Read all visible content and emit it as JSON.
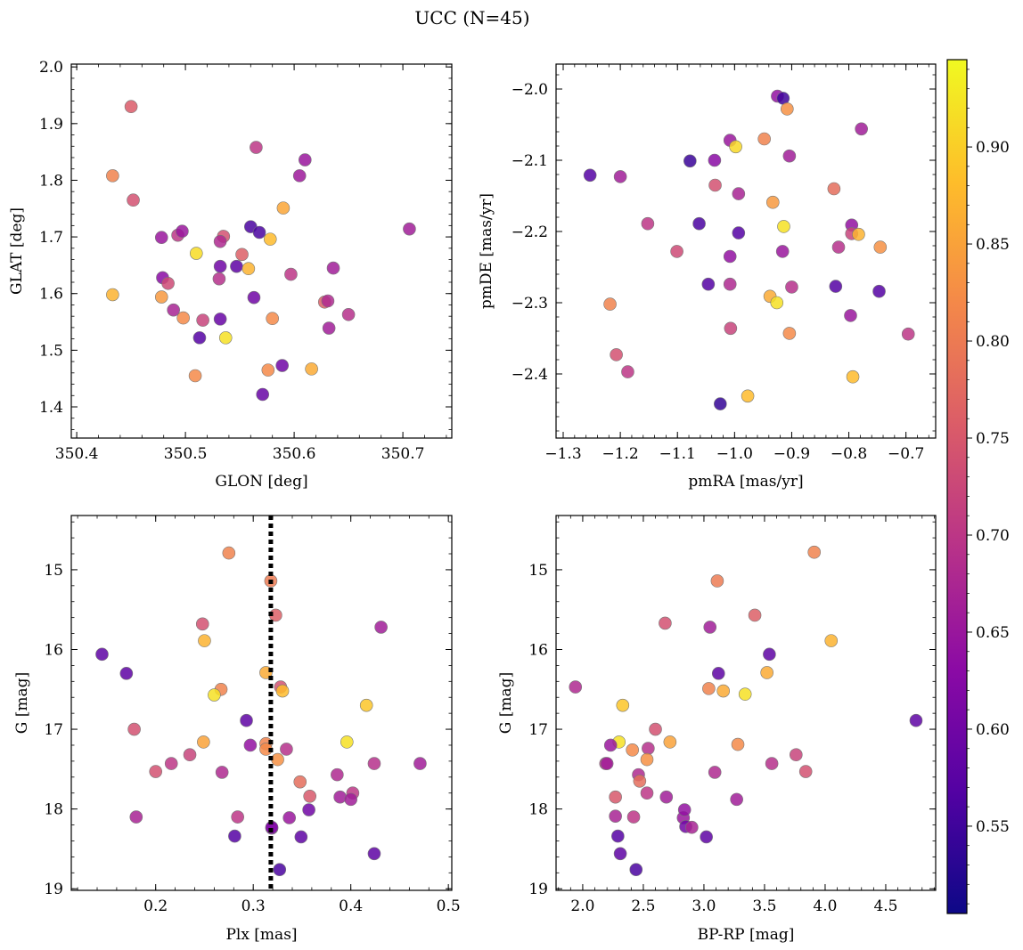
{
  "figure": {
    "title": "UCC (N=45)"
  },
  "colorbar": {
    "range": [
      0.505,
      0.945
    ],
    "ticks": [
      "0.55",
      "0.60",
      "0.65",
      "0.70",
      "0.75",
      "0.80",
      "0.85",
      "0.90"
    ]
  },
  "colormap": {
    "name": "plasma",
    "stops": [
      "#0d0887",
      "#5302a3",
      "#8b0aa5",
      "#b83289",
      "#db5c68",
      "#f48849",
      "#febd2a",
      "#f0f921"
    ]
  },
  "chart_data": [
    {
      "type": "scatter",
      "title": "",
      "xlabel": "GLON [deg]",
      "ylabel": "GLAT [deg]",
      "xlim": [
        350.395,
        350.745
      ],
      "ylim": [
        1.345,
        2.005
      ],
      "yinvert": false,
      "xticks": [
        "350.4",
        "350.5",
        "350.6",
        "350.7"
      ],
      "yticks": [
        "1.4",
        "1.5",
        "1.6",
        "1.7",
        "1.8",
        "1.9",
        "2.0"
      ],
      "points": [
        {
          "x": 350.45,
          "y": 1.93,
          "c": 0.755
        },
        {
          "x": 350.433,
          "y": 1.808,
          "c": 0.81
        },
        {
          "x": 350.452,
          "y": 1.765,
          "c": 0.74
        },
        {
          "x": 350.565,
          "y": 1.858,
          "c": 0.7
        },
        {
          "x": 350.61,
          "y": 1.836,
          "c": 0.65
        },
        {
          "x": 350.605,
          "y": 1.808,
          "c": 0.655
        },
        {
          "x": 350.59,
          "y": 1.751,
          "c": 0.855
        },
        {
          "x": 350.706,
          "y": 1.714,
          "c": 0.66
        },
        {
          "x": 350.478,
          "y": 1.699,
          "c": 0.65
        },
        {
          "x": 350.493,
          "y": 1.703,
          "c": 0.7
        },
        {
          "x": 350.497,
          "y": 1.71,
          "c": 0.65
        },
        {
          "x": 350.535,
          "y": 1.701,
          "c": 0.74
        },
        {
          "x": 350.532,
          "y": 1.692,
          "c": 0.68
        },
        {
          "x": 350.51,
          "y": 1.671,
          "c": 0.915
        },
        {
          "x": 350.56,
          "y": 1.718,
          "c": 0.56
        },
        {
          "x": 350.568,
          "y": 1.708,
          "c": 0.56
        },
        {
          "x": 350.578,
          "y": 1.696,
          "c": 0.88
        },
        {
          "x": 350.552,
          "y": 1.669,
          "c": 0.76
        },
        {
          "x": 350.532,
          "y": 1.648,
          "c": 0.6
        },
        {
          "x": 350.547,
          "y": 1.648,
          "c": 0.58
        },
        {
          "x": 350.558,
          "y": 1.644,
          "c": 0.87
        },
        {
          "x": 350.636,
          "y": 1.645,
          "c": 0.66
        },
        {
          "x": 350.597,
          "y": 1.634,
          "c": 0.7
        },
        {
          "x": 350.479,
          "y": 1.628,
          "c": 0.63
        },
        {
          "x": 350.484,
          "y": 1.618,
          "c": 0.73
        },
        {
          "x": 350.531,
          "y": 1.626,
          "c": 0.69
        },
        {
          "x": 350.563,
          "y": 1.593,
          "c": 0.6
        },
        {
          "x": 350.433,
          "y": 1.598,
          "c": 0.87
        },
        {
          "x": 350.478,
          "y": 1.594,
          "c": 0.84
        },
        {
          "x": 350.628,
          "y": 1.585,
          "c": 0.76
        },
        {
          "x": 350.631,
          "y": 1.587,
          "c": 0.68
        },
        {
          "x": 350.489,
          "y": 1.571,
          "c": 0.67
        },
        {
          "x": 350.498,
          "y": 1.557,
          "c": 0.82
        },
        {
          "x": 350.516,
          "y": 1.553,
          "c": 0.72
        },
        {
          "x": 350.532,
          "y": 1.555,
          "c": 0.59
        },
        {
          "x": 350.58,
          "y": 1.556,
          "c": 0.82
        },
        {
          "x": 350.65,
          "y": 1.563,
          "c": 0.69
        },
        {
          "x": 350.632,
          "y": 1.539,
          "c": 0.66
        },
        {
          "x": 350.513,
          "y": 1.522,
          "c": 0.57
        },
        {
          "x": 350.537,
          "y": 1.522,
          "c": 0.92
        },
        {
          "x": 350.576,
          "y": 1.465,
          "c": 0.82
        },
        {
          "x": 350.616,
          "y": 1.467,
          "c": 0.86
        },
        {
          "x": 350.589,
          "y": 1.473,
          "c": 0.6
        },
        {
          "x": 350.509,
          "y": 1.455,
          "c": 0.82
        },
        {
          "x": 350.571,
          "y": 1.422,
          "c": 0.59
        }
      ]
    },
    {
      "type": "scatter",
      "title": "",
      "xlabel": "pmRA [mas/yr]",
      "ylabel": "pmDE [mas/yr]",
      "xlim": [
        -1.3125,
        -0.648
      ],
      "ylim": [
        -2.49,
        -1.965
      ],
      "yinvert": false,
      "xticks": [
        "−1.3",
        "−1.2",
        "−1.1",
        "−1.0",
        "−0.9",
        "−0.8",
        "−0.7"
      ],
      "yticks": [
        "−2.4",
        "−2.3",
        "−2.2",
        "−2.1",
        "−2.0"
      ],
      "points": [
        {
          "x": -0.925,
          "y": -2.01,
          "c": 0.64
        },
        {
          "x": -0.915,
          "y": -2.013,
          "c": 0.55
        },
        {
          "x": -0.908,
          "y": -2.028,
          "c": 0.83
        },
        {
          "x": -0.778,
          "y": -2.056,
          "c": 0.66
        },
        {
          "x": -1.008,
          "y": -2.072,
          "c": 0.65
        },
        {
          "x": -0.998,
          "y": -2.081,
          "c": 0.91
        },
        {
          "x": -0.948,
          "y": -2.07,
          "c": 0.81
        },
        {
          "x": -0.904,
          "y": -2.094,
          "c": 0.66
        },
        {
          "x": -1.078,
          "y": -2.101,
          "c": 0.545
        },
        {
          "x": -1.035,
          "y": -2.1,
          "c": 0.63
        },
        {
          "x": -1.253,
          "y": -2.121,
          "c": 0.57
        },
        {
          "x": -1.2,
          "y": -2.123,
          "c": 0.66
        },
        {
          "x": -1.034,
          "y": -2.135,
          "c": 0.74
        },
        {
          "x": -0.993,
          "y": -2.147,
          "c": 0.67
        },
        {
          "x": -0.933,
          "y": -2.159,
          "c": 0.84
        },
        {
          "x": -0.826,
          "y": -2.14,
          "c": 0.78
        },
        {
          "x": -1.152,
          "y": -2.189,
          "c": 0.7
        },
        {
          "x": -1.062,
          "y": -2.189,
          "c": 0.56
        },
        {
          "x": -0.914,
          "y": -2.193,
          "c": 0.92
        },
        {
          "x": -0.993,
          "y": -2.202,
          "c": 0.57
        },
        {
          "x": -0.795,
          "y": -2.191,
          "c": 0.64
        },
        {
          "x": -0.795,
          "y": -2.203,
          "c": 0.72
        },
        {
          "x": -0.783,
          "y": -2.204,
          "c": 0.87
        },
        {
          "x": -0.745,
          "y": -2.222,
          "c": 0.83
        },
        {
          "x": -0.818,
          "y": -2.222,
          "c": 0.69
        },
        {
          "x": -1.101,
          "y": -2.228,
          "c": 0.73
        },
        {
          "x": -1.008,
          "y": -2.235,
          "c": 0.64
        },
        {
          "x": -0.916,
          "y": -2.228,
          "c": 0.65
        },
        {
          "x": -1.046,
          "y": -2.274,
          "c": 0.57
        },
        {
          "x": -1.008,
          "y": -2.274,
          "c": 0.68
        },
        {
          "x": -0.9,
          "y": -2.278,
          "c": 0.69
        },
        {
          "x": -0.823,
          "y": -2.277,
          "c": 0.57
        },
        {
          "x": -0.747,
          "y": -2.284,
          "c": 0.57
        },
        {
          "x": -0.938,
          "y": -2.291,
          "c": 0.86
        },
        {
          "x": -0.926,
          "y": -2.3,
          "c": 0.92
        },
        {
          "x": -1.218,
          "y": -2.302,
          "c": 0.81
        },
        {
          "x": -0.797,
          "y": -2.318,
          "c": 0.65
        },
        {
          "x": -1.007,
          "y": -2.336,
          "c": 0.72
        },
        {
          "x": -0.904,
          "y": -2.343,
          "c": 0.82
        },
        {
          "x": -0.696,
          "y": -2.344,
          "c": 0.7
        },
        {
          "x": -1.207,
          "y": -2.373,
          "c": 0.74
        },
        {
          "x": -1.187,
          "y": -2.397,
          "c": 0.7
        },
        {
          "x": -0.793,
          "y": -2.404,
          "c": 0.88
        },
        {
          "x": -0.977,
          "y": -2.431,
          "c": 0.88
        },
        {
          "x": -1.025,
          "y": -2.442,
          "c": 0.54
        }
      ]
    },
    {
      "type": "scatter",
      "title": "",
      "xlabel": "Plx [mas]",
      "ylabel": "G [mag]",
      "xlim": [
        0.1135,
        0.5035
      ],
      "ylim": [
        14.32,
        19.02
      ],
      "yinvert": true,
      "vline": 0.318,
      "xticks": [
        "0.2",
        "0.3",
        "0.4",
        "0.5"
      ],
      "yticks": [
        "15",
        "16",
        "17",
        "18",
        "19"
      ],
      "points": [
        {
          "x": 0.275,
          "y": 14.79,
          "c": 0.81
        },
        {
          "x": 0.318,
          "y": 15.14,
          "c": 0.8
        },
        {
          "x": 0.323,
          "y": 15.57,
          "c": 0.76
        },
        {
          "x": 0.248,
          "y": 15.68,
          "c": 0.74
        },
        {
          "x": 0.431,
          "y": 15.72,
          "c": 0.66
        },
        {
          "x": 0.25,
          "y": 15.89,
          "c": 0.87
        },
        {
          "x": 0.145,
          "y": 16.06,
          "c": 0.58
        },
        {
          "x": 0.17,
          "y": 16.3,
          "c": 0.58
        },
        {
          "x": 0.313,
          "y": 16.29,
          "c": 0.86
        },
        {
          "x": 0.328,
          "y": 16.47,
          "c": 0.74
        },
        {
          "x": 0.33,
          "y": 16.52,
          "c": 0.88
        },
        {
          "x": 0.267,
          "y": 16.5,
          "c": 0.81
        },
        {
          "x": 0.26,
          "y": 16.57,
          "c": 0.92
        },
        {
          "x": 0.416,
          "y": 16.7,
          "c": 0.89
        },
        {
          "x": 0.293,
          "y": 16.89,
          "c": 0.58
        },
        {
          "x": 0.178,
          "y": 17.0,
          "c": 0.74
        },
        {
          "x": 0.249,
          "y": 17.16,
          "c": 0.85
        },
        {
          "x": 0.313,
          "y": 17.18,
          "c": 0.81
        },
        {
          "x": 0.297,
          "y": 17.2,
          "c": 0.64
        },
        {
          "x": 0.396,
          "y": 17.16,
          "c": 0.92
        },
        {
          "x": 0.313,
          "y": 17.25,
          "c": 0.82
        },
        {
          "x": 0.334,
          "y": 17.25,
          "c": 0.69
        },
        {
          "x": 0.235,
          "y": 17.32,
          "c": 0.72
        },
        {
          "x": 0.325,
          "y": 17.38,
          "c": 0.83
        },
        {
          "x": 0.216,
          "y": 17.43,
          "c": 0.7
        },
        {
          "x": 0.424,
          "y": 17.43,
          "c": 0.69
        },
        {
          "x": 0.471,
          "y": 17.43,
          "c": 0.66
        },
        {
          "x": 0.2,
          "y": 17.53,
          "c": 0.74
        },
        {
          "x": 0.268,
          "y": 17.54,
          "c": 0.68
        },
        {
          "x": 0.386,
          "y": 17.57,
          "c": 0.68
        },
        {
          "x": 0.348,
          "y": 17.66,
          "c": 0.78
        },
        {
          "x": 0.402,
          "y": 17.8,
          "c": 0.7
        },
        {
          "x": 0.358,
          "y": 17.84,
          "c": 0.75
        },
        {
          "x": 0.389,
          "y": 17.85,
          "c": 0.66
        },
        {
          "x": 0.4,
          "y": 17.88,
          "c": 0.66
        },
        {
          "x": 0.357,
          "y": 18.01,
          "c": 0.6
        },
        {
          "x": 0.18,
          "y": 18.1,
          "c": 0.67
        },
        {
          "x": 0.284,
          "y": 18.1,
          "c": 0.7
        },
        {
          "x": 0.337,
          "y": 18.11,
          "c": 0.65
        },
        {
          "x": 0.319,
          "y": 18.24,
          "c": 0.62
        },
        {
          "x": 0.281,
          "y": 18.34,
          "c": 0.57
        },
        {
          "x": 0.349,
          "y": 18.35,
          "c": 0.58
        },
        {
          "x": 0.424,
          "y": 18.56,
          "c": 0.58
        },
        {
          "x": 0.327,
          "y": 18.76,
          "c": 0.56
        },
        {
          "x": 0.319,
          "y": 18.23,
          "c": 0.62
        }
      ]
    },
    {
      "type": "scatter",
      "title": "",
      "xlabel": "BP-RP [mag]",
      "ylabel": "G [mag]",
      "xlim": [
        1.78,
        4.912
      ],
      "ylim": [
        14.32,
        19.02
      ],
      "yinvert": true,
      "xticks": [
        "2.0",
        "2.5",
        "3.0",
        "3.5",
        "4.0",
        "4.5"
      ],
      "yticks": [
        "15",
        "16",
        "17",
        "18",
        "19"
      ],
      "points": [
        {
          "x": 3.91,
          "y": 14.78,
          "c": 0.81
        },
        {
          "x": 3.11,
          "y": 15.14,
          "c": 0.8
        },
        {
          "x": 3.42,
          "y": 15.57,
          "c": 0.76
        },
        {
          "x": 2.68,
          "y": 15.67,
          "c": 0.74
        },
        {
          "x": 3.05,
          "y": 15.72,
          "c": 0.66
        },
        {
          "x": 4.05,
          "y": 15.89,
          "c": 0.87
        },
        {
          "x": 3.54,
          "y": 16.06,
          "c": 0.58
        },
        {
          "x": 3.12,
          "y": 16.3,
          "c": 0.58
        },
        {
          "x": 3.52,
          "y": 16.29,
          "c": 0.86
        },
        {
          "x": 1.94,
          "y": 16.47,
          "c": 0.68
        },
        {
          "x": 3.04,
          "y": 16.49,
          "c": 0.81
        },
        {
          "x": 3.16,
          "y": 16.52,
          "c": 0.86
        },
        {
          "x": 3.34,
          "y": 16.56,
          "c": 0.92
        },
        {
          "x": 2.33,
          "y": 16.7,
          "c": 0.89
        },
        {
          "x": 4.75,
          "y": 16.89,
          "c": 0.58
        },
        {
          "x": 2.6,
          "y": 17.0,
          "c": 0.74
        },
        {
          "x": 2.72,
          "y": 17.16,
          "c": 0.85
        },
        {
          "x": 2.3,
          "y": 17.16,
          "c": 0.92
        },
        {
          "x": 2.23,
          "y": 17.2,
          "c": 0.65
        },
        {
          "x": 3.28,
          "y": 17.19,
          "c": 0.82
        },
        {
          "x": 2.54,
          "y": 17.24,
          "c": 0.69
        },
        {
          "x": 2.41,
          "y": 17.26,
          "c": 0.82
        },
        {
          "x": 3.76,
          "y": 17.32,
          "c": 0.72
        },
        {
          "x": 2.53,
          "y": 17.38,
          "c": 0.83
        },
        {
          "x": 2.19,
          "y": 17.43,
          "c": 0.7
        },
        {
          "x": 2.2,
          "y": 17.43,
          "c": 0.66
        },
        {
          "x": 3.56,
          "y": 17.43,
          "c": 0.69
        },
        {
          "x": 3.84,
          "y": 17.53,
          "c": 0.74
        },
        {
          "x": 3.09,
          "y": 17.54,
          "c": 0.68
        },
        {
          "x": 2.46,
          "y": 17.57,
          "c": 0.68
        },
        {
          "x": 2.47,
          "y": 17.65,
          "c": 0.78
        },
        {
          "x": 2.53,
          "y": 17.8,
          "c": 0.7
        },
        {
          "x": 2.27,
          "y": 17.85,
          "c": 0.75
        },
        {
          "x": 2.69,
          "y": 17.85,
          "c": 0.66
        },
        {
          "x": 3.27,
          "y": 17.88,
          "c": 0.66
        },
        {
          "x": 2.42,
          "y": 18.1,
          "c": 0.7
        },
        {
          "x": 2.27,
          "y": 18.09,
          "c": 0.67
        },
        {
          "x": 2.83,
          "y": 18.11,
          "c": 0.65
        },
        {
          "x": 2.85,
          "y": 18.22,
          "c": 0.6
        },
        {
          "x": 2.9,
          "y": 18.23,
          "c": 0.67
        },
        {
          "x": 2.29,
          "y": 18.34,
          "c": 0.57
        },
        {
          "x": 3.02,
          "y": 18.35,
          "c": 0.58
        },
        {
          "x": 2.31,
          "y": 18.56,
          "c": 0.58
        },
        {
          "x": 2.44,
          "y": 18.76,
          "c": 0.56
        },
        {
          "x": 2.84,
          "y": 18.01,
          "c": 0.64
        }
      ]
    }
  ]
}
